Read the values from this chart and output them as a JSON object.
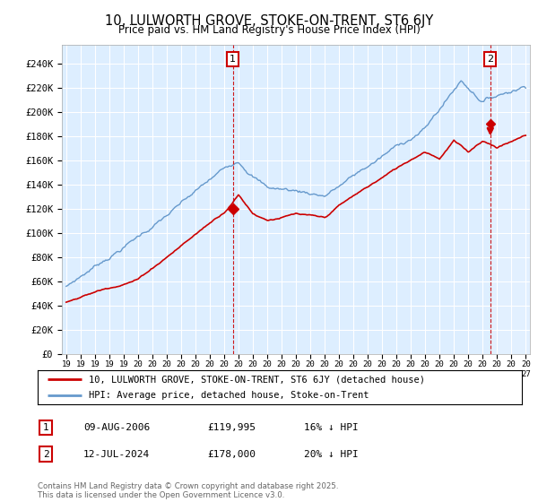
{
  "title": "10, LULWORTH GROVE, STOKE-ON-TRENT, ST6 6JY",
  "subtitle": "Price paid vs. HM Land Registry's House Price Index (HPI)",
  "ylabel_ticks": [
    "£0",
    "£20K",
    "£40K",
    "£60K",
    "£80K",
    "£100K",
    "£120K",
    "£140K",
    "£160K",
    "£180K",
    "£200K",
    "£220K",
    "£240K"
  ],
  "ytick_values": [
    0,
    20000,
    40000,
    60000,
    80000,
    100000,
    120000,
    140000,
    160000,
    180000,
    200000,
    220000,
    240000
  ],
  "ylim": [
    0,
    255000
  ],
  "xlim_start": 1994.7,
  "xlim_end": 2027.3,
  "marker1_x": 2006.6,
  "marker1_y": 119995,
  "marker2_x": 2024.54,
  "marker2_y": 178000,
  "legend_line1": "10, LULWORTH GROVE, STOKE-ON-TRENT, ST6 6JY (detached house)",
  "legend_line2": "HPI: Average price, detached house, Stoke-on-Trent",
  "table_row1": [
    "1",
    "09-AUG-2006",
    "£119,995",
    "16% ↓ HPI"
  ],
  "table_row2": [
    "2",
    "12-JUL-2024",
    "£178,000",
    "20% ↓ HPI"
  ],
  "footer": "Contains HM Land Registry data © Crown copyright and database right 2025.\nThis data is licensed under the Open Government Licence v3.0.",
  "color_sold": "#cc0000",
  "color_hpi": "#6699cc",
  "color_hpi_fill": "#ddeeff",
  "color_grid": "#cccccc",
  "color_dashed": "#cc0000",
  "background_color": "#ffffff"
}
